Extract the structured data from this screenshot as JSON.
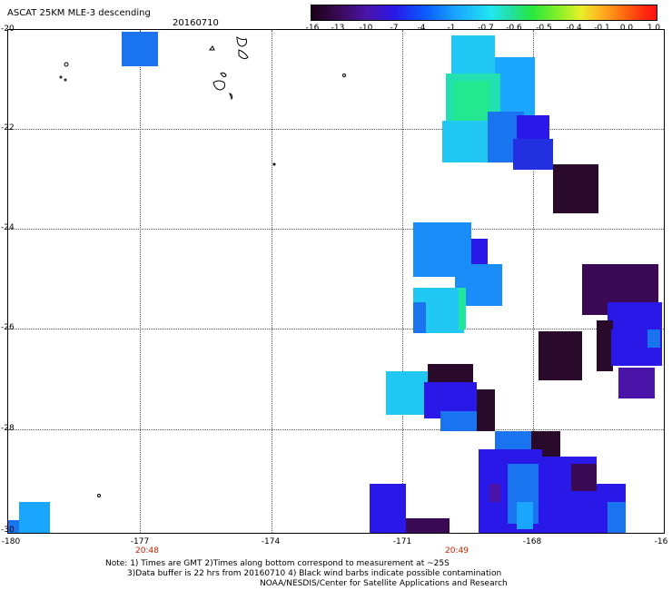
{
  "title": "ASCAT 25KM MLE-3 descending",
  "date": "20160710",
  "colorbar": {
    "ticks": [
      "-16",
      "-13",
      "-10",
      "-7",
      "-4",
      "-1",
      "-0.7",
      "-0.6",
      "-0.5",
      "-0.4",
      "-0.1",
      "0.0",
      "1.0"
    ]
  },
  "axes": {
    "lat_labels": [
      "-20",
      "-22",
      "-24",
      "-26",
      "-28",
      "-30"
    ],
    "lon_labels": [
      "-180",
      "-177",
      "-174",
      "-171",
      "-168",
      "-16"
    ],
    "time_labels": [
      "20:48",
      "20:49"
    ]
  },
  "notes": {
    "line1": "Note: 1) Times are GMT 2)Times along bottom correspond to measurement at ~25S",
    "line2": "3)Data buffer is 22 hrs from 20160710 4) Black wind barbs indicate possible contamination",
    "line3": "NOAA/NESDIS/Center for Satellite Applications and Research"
  },
  "map_layers": {
    "islands": [
      "tonga-islands",
      "fiji-islands",
      "niue-island"
    ],
    "data_swaths": [
      "swath-north",
      "swath-central",
      "swath-east",
      "swath-south"
    ]
  }
}
